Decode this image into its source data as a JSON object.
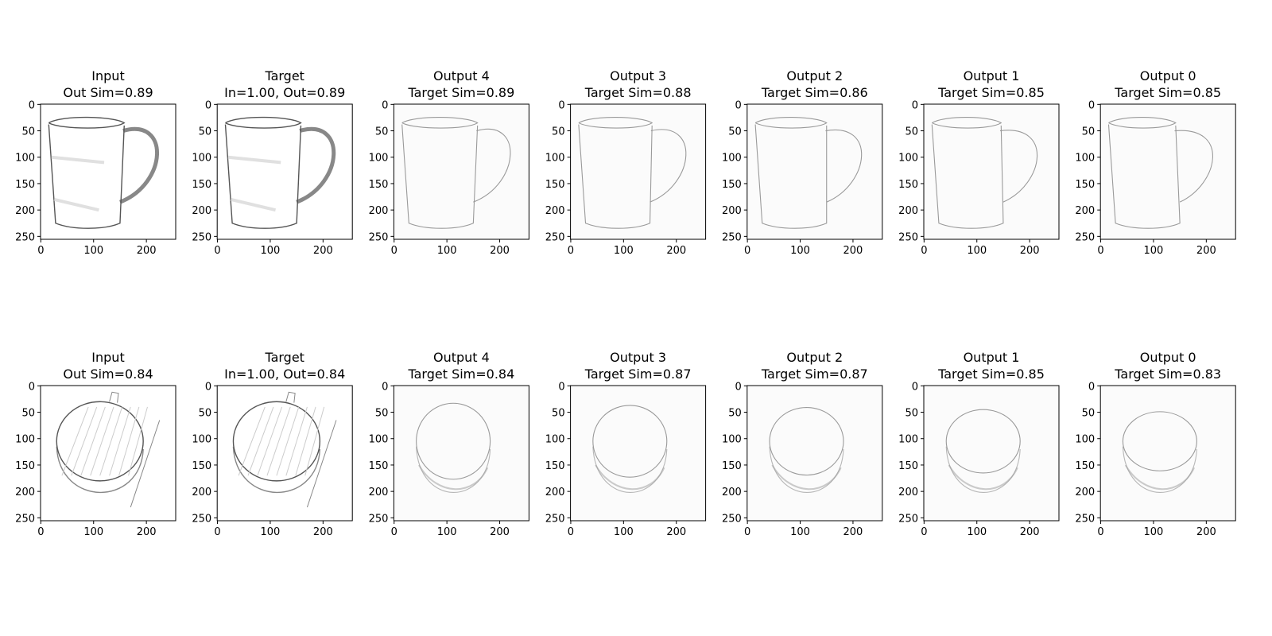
{
  "chart_data": [
    {
      "type": "image",
      "title": "Input",
      "subtitle": "Out Sim=0.89",
      "xlim": [
        -0.5,
        255.5
      ],
      "ylim": [
        255.5,
        -0.5
      ],
      "xticks": [
        0,
        100,
        200
      ],
      "yticks": [
        0,
        50,
        100,
        150,
        200,
        250
      ]
    },
    {
      "type": "image",
      "title": "Target",
      "subtitle": "In=1.00, Out=0.89",
      "xlim": [
        -0.5,
        255.5
      ],
      "ylim": [
        255.5,
        -0.5
      ],
      "xticks": [
        0,
        100,
        200
      ],
      "yticks": [
        0,
        50,
        100,
        150,
        200,
        250
      ]
    },
    {
      "type": "image",
      "title": "Output 4",
      "subtitle": "Target Sim=0.89",
      "xlim": [
        -0.5,
        255.5
      ],
      "ylim": [
        255.5,
        -0.5
      ],
      "xticks": [
        0,
        100,
        200
      ],
      "yticks": [
        0,
        50,
        100,
        150,
        200,
        250
      ]
    },
    {
      "type": "image",
      "title": "Output 3",
      "subtitle": "Target Sim=0.88",
      "xlim": [
        -0.5,
        255.5
      ],
      "ylim": [
        255.5,
        -0.5
      ],
      "xticks": [
        0,
        100,
        200
      ],
      "yticks": [
        0,
        50,
        100,
        150,
        200,
        250
      ]
    },
    {
      "type": "image",
      "title": "Output 2",
      "subtitle": "Target Sim=0.86",
      "xlim": [
        -0.5,
        255.5
      ],
      "ylim": [
        255.5,
        -0.5
      ],
      "xticks": [
        0,
        100,
        200
      ],
      "yticks": [
        0,
        50,
        100,
        150,
        200,
        250
      ]
    },
    {
      "type": "image",
      "title": "Output 1",
      "subtitle": "Target Sim=0.85",
      "xlim": [
        -0.5,
        255.5
      ],
      "ylim": [
        255.5,
        -0.5
      ],
      "xticks": [
        0,
        100,
        200
      ],
      "yticks": [
        0,
        50,
        100,
        150,
        200,
        250
      ]
    },
    {
      "type": "image",
      "title": "Output 0",
      "subtitle": "Target Sim=0.85",
      "xlim": [
        -0.5,
        255.5
      ],
      "ylim": [
        255.5,
        -0.5
      ],
      "xticks": [
        0,
        100,
        200
      ],
      "yticks": [
        0,
        50,
        100,
        150,
        200,
        250
      ]
    },
    {
      "type": "image",
      "title": "Input",
      "subtitle": "Out Sim=0.84",
      "xlim": [
        -0.5,
        255.5
      ],
      "ylim": [
        255.5,
        -0.5
      ],
      "xticks": [
        0,
        100,
        200
      ],
      "yticks": [
        0,
        50,
        100,
        150,
        200,
        250
      ]
    },
    {
      "type": "image",
      "title": "Target",
      "subtitle": "In=1.00, Out=0.84",
      "xlim": [
        -0.5,
        255.5
      ],
      "ylim": [
        255.5,
        -0.5
      ],
      "xticks": [
        0,
        100,
        200
      ],
      "yticks": [
        0,
        50,
        100,
        150,
        200,
        250
      ]
    },
    {
      "type": "image",
      "title": "Output 4",
      "subtitle": "Target Sim=0.84",
      "xlim": [
        -0.5,
        255.5
      ],
      "ylim": [
        255.5,
        -0.5
      ],
      "xticks": [
        0,
        100,
        200
      ],
      "yticks": [
        0,
        50,
        100,
        150,
        200,
        250
      ]
    },
    {
      "type": "image",
      "title": "Output 3",
      "subtitle": "Target Sim=0.87",
      "xlim": [
        -0.5,
        255.5
      ],
      "ylim": [
        255.5,
        -0.5
      ],
      "xticks": [
        0,
        100,
        200
      ],
      "yticks": [
        0,
        50,
        100,
        150,
        200,
        250
      ]
    },
    {
      "type": "image",
      "title": "Output 2",
      "subtitle": "Target Sim=0.87",
      "xlim": [
        -0.5,
        255.5
      ],
      "ylim": [
        255.5,
        -0.5
      ],
      "xticks": [
        0,
        100,
        200
      ],
      "yticks": [
        0,
        50,
        100,
        150,
        200,
        250
      ]
    },
    {
      "type": "image",
      "title": "Output 1",
      "subtitle": "Target Sim=0.85",
      "xlim": [
        -0.5,
        255.5
      ],
      "ylim": [
        255.5,
        -0.5
      ],
      "xticks": [
        0,
        100,
        200
      ],
      "yticks": [
        0,
        50,
        100,
        150,
        200,
        250
      ]
    },
    {
      "type": "image",
      "title": "Output 0",
      "subtitle": "Target Sim=0.83",
      "xlim": [
        -0.5,
        255.5
      ],
      "ylim": [
        255.5,
        -0.5
      ],
      "xticks": [
        0,
        100,
        200
      ],
      "yticks": [
        0,
        50,
        100,
        150,
        200,
        250
      ]
    }
  ]
}
